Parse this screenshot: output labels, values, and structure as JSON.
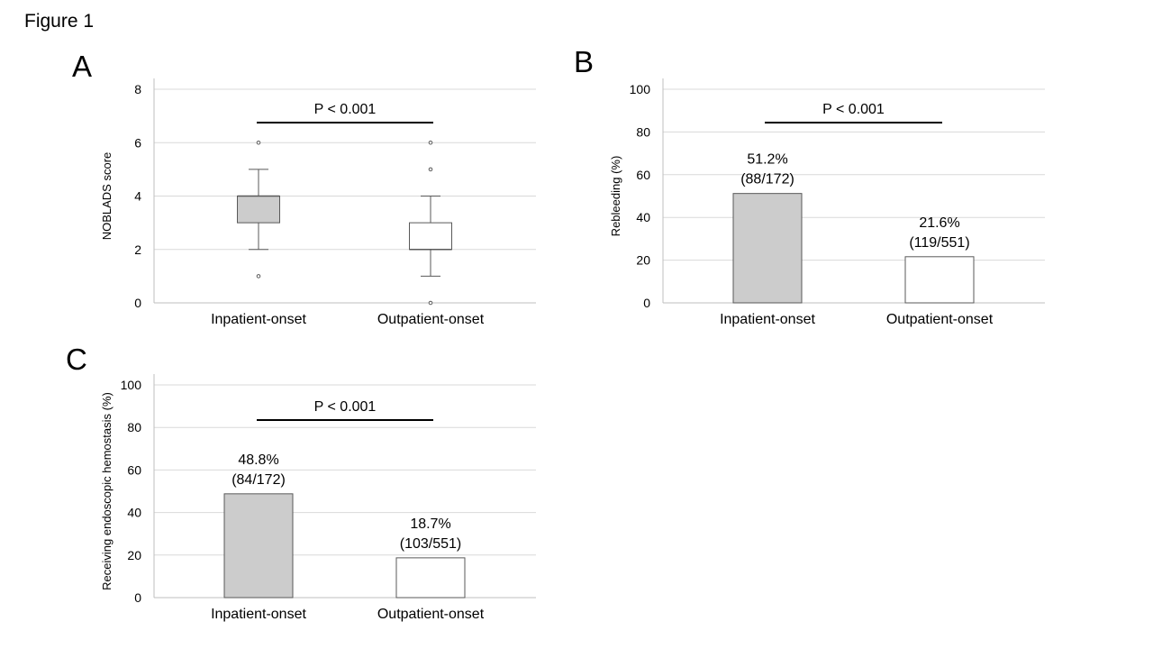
{
  "figure_title": "Figure 1",
  "panels": [
    {
      "letter": "A"
    },
    {
      "letter": "B"
    },
    {
      "letter": "C"
    }
  ],
  "colors": {
    "inpatient_fill": "#cccccc",
    "outpatient_fill": "#ffffff",
    "stroke": "#595959",
    "grid": "#d9d9d9"
  },
  "chart_data": [
    {
      "type": "box",
      "panel": "A",
      "ylabel": "NOBLADS score",
      "ylim": [
        0,
        8
      ],
      "yticks": [
        "0",
        "2",
        "4",
        "6",
        "8"
      ],
      "categories": [
        "Inpatient-onset",
        "Outpatient-onset"
      ],
      "boxes": [
        {
          "category": "Inpatient-onset",
          "whisker_low": 2,
          "q1": 3,
          "median": 4,
          "q3": 4,
          "whisker_high": 5,
          "outliers": [
            6,
            1
          ]
        },
        {
          "category": "Outpatient-onset",
          "whisker_low": 1,
          "q1": 2,
          "median": 2,
          "q3": 3,
          "whisker_high": 4,
          "outliers": [
            6,
            5,
            0
          ]
        }
      ],
      "annotation": "P < 0.001",
      "grid": true
    },
    {
      "type": "bar",
      "panel": "B",
      "ylabel": "Rebleeding (%)",
      "ylim": [
        0,
        100
      ],
      "yticks": [
        "0",
        "20",
        "40",
        "60",
        "80",
        "100"
      ],
      "categories": [
        "Inpatient-onset",
        "Outpatient-onset"
      ],
      "values": [
        51.2,
        21.6
      ],
      "data_labels": [
        [
          "51.2%",
          "(88/172)"
        ],
        [
          "21.6%",
          "(119/551)"
        ]
      ],
      "annotation": "P < 0.001",
      "grid": true
    },
    {
      "type": "bar",
      "panel": "C",
      "ylabel": "Receiving endoscopic hemostasis (%)",
      "ylim": [
        0,
        100
      ],
      "yticks": [
        "0",
        "20",
        "40",
        "60",
        "80",
        "100"
      ],
      "categories": [
        "Inpatient-onset",
        "Outpatient-onset"
      ],
      "values": [
        48.8,
        18.7
      ],
      "data_labels": [
        [
          "48.8%",
          "(84/172)"
        ],
        [
          "18.7%",
          "(103/551)"
        ]
      ],
      "annotation": "P < 0.001",
      "grid": true
    }
  ]
}
